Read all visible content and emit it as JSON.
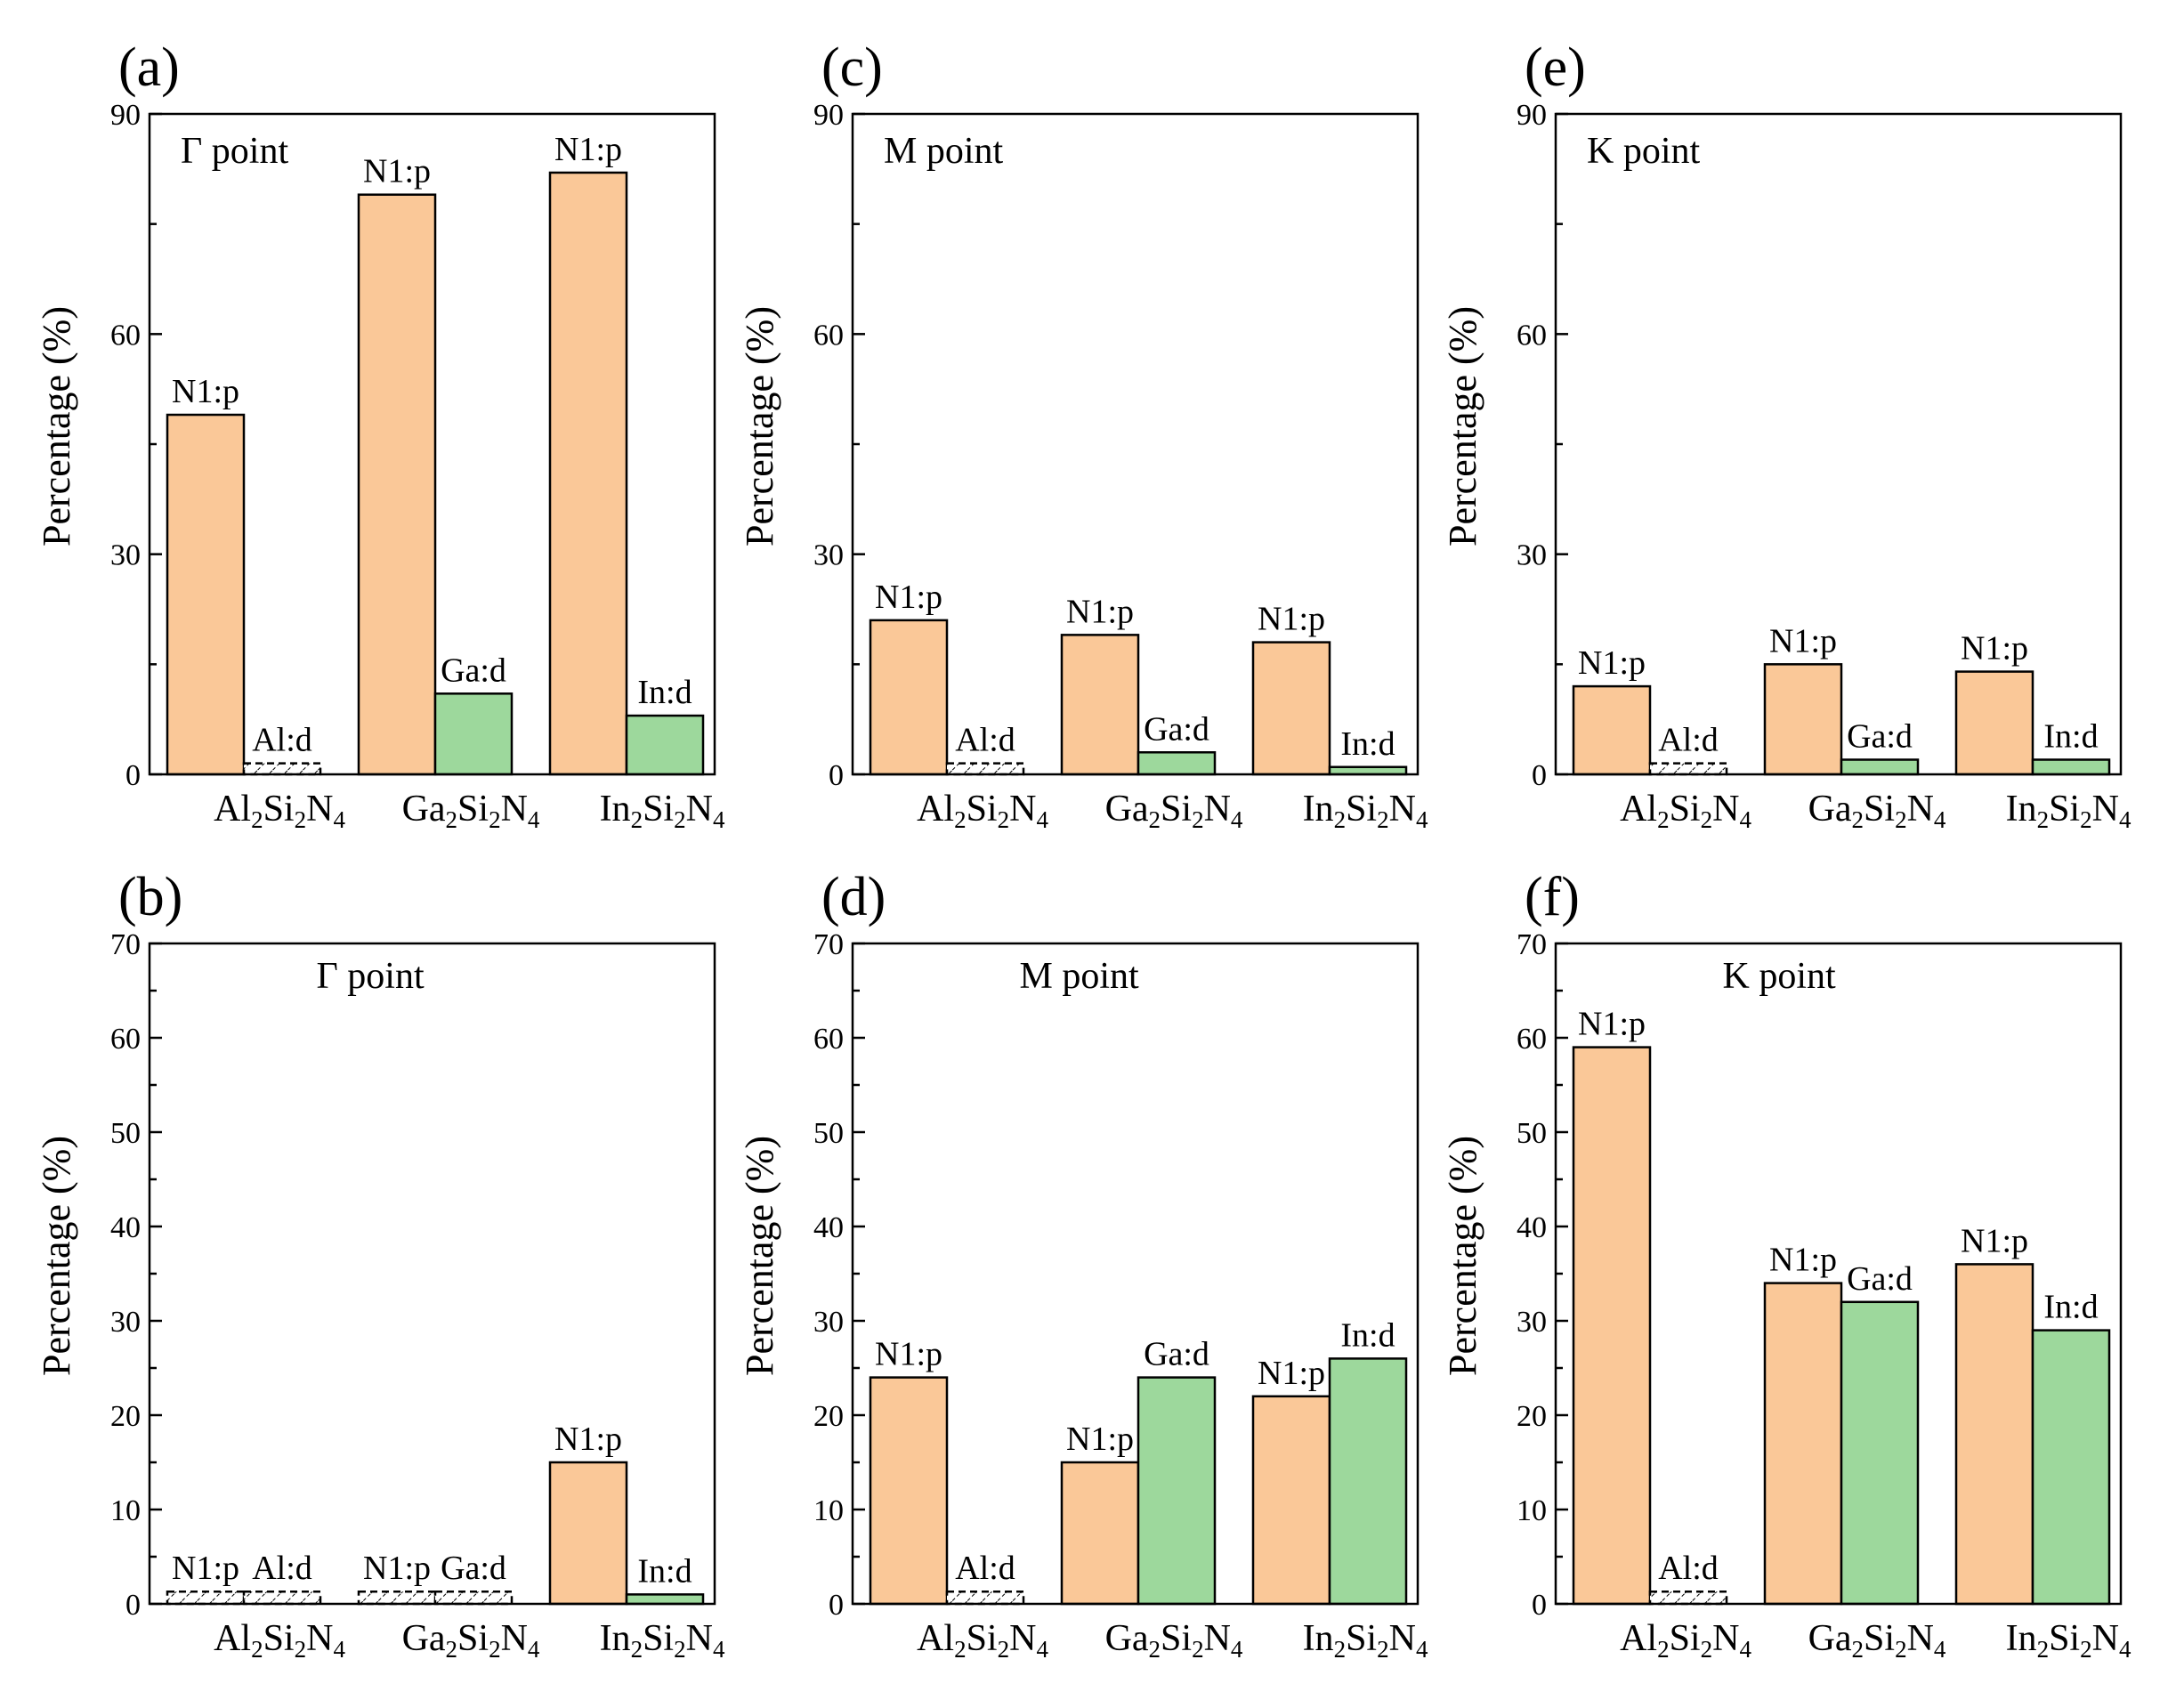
{
  "colors": {
    "n1p": "#fac898",
    "metal_d": "#9dd89c",
    "dashed_fill": "#ffffff",
    "axis": "#000000"
  },
  "subscript_digit": "2",
  "subscript_digit_n": "4",
  "chart_data": [
    {
      "panel": "(a)",
      "type": "bar",
      "title": "Γ point",
      "title_align": "left",
      "ylabel": "Percentage (%)",
      "ylim": [
        0,
        90
      ],
      "yticks": [
        0,
        30,
        60,
        90
      ],
      "categories": [
        {
          "metal": "Al",
          "n1p": 49,
          "d": 1.5,
          "d_label": "Al:d",
          "d_dashed": true
        },
        {
          "metal": "Ga",
          "n1p": 79,
          "d": 11,
          "d_label": "Ga:d",
          "d_dashed": false
        },
        {
          "metal": "In",
          "n1p": 82,
          "d": 8,
          "d_label": "In:d",
          "d_dashed": false
        }
      ],
      "n1p_label": "N1:p",
      "n1p_dashed": [
        false,
        false,
        false
      ]
    },
    {
      "panel": "(c)",
      "type": "bar",
      "title": "M point",
      "title_align": "left",
      "ylabel": "Percentage (%)",
      "ylim": [
        0,
        90
      ],
      "yticks": [
        0,
        30,
        60,
        90
      ],
      "categories": [
        {
          "metal": "Al",
          "n1p": 21,
          "d": 1.5,
          "d_label": "Al:d",
          "d_dashed": true
        },
        {
          "metal": "Ga",
          "n1p": 19,
          "d": 3,
          "d_label": "Ga:d",
          "d_dashed": false
        },
        {
          "metal": "In",
          "n1p": 18,
          "d": 1,
          "d_label": "In:d",
          "d_dashed": false
        }
      ],
      "n1p_label": "N1:p",
      "n1p_dashed": [
        false,
        false,
        false
      ]
    },
    {
      "panel": "(e)",
      "type": "bar",
      "title": "K point",
      "title_align": "left",
      "ylabel": "Percentage (%)",
      "ylim": [
        0,
        90
      ],
      "yticks": [
        0,
        30,
        60,
        90
      ],
      "categories": [
        {
          "metal": "Al",
          "n1p": 12,
          "d": 1.5,
          "d_label": "Al:d",
          "d_dashed": true
        },
        {
          "metal": "Ga",
          "n1p": 15,
          "d": 2,
          "d_label": "Ga:d",
          "d_dashed": false
        },
        {
          "metal": "In",
          "n1p": 14,
          "d": 2,
          "d_label": "In:d",
          "d_dashed": false
        }
      ],
      "n1p_label": "N1:p",
      "n1p_dashed": [
        false,
        false,
        false
      ]
    },
    {
      "panel": "(b)",
      "type": "bar",
      "title": "Γ point",
      "title_align": "center",
      "ylabel": "Percentage (%)",
      "ylim": [
        0,
        70
      ],
      "yticks": [
        0,
        10,
        20,
        30,
        40,
        50,
        60,
        70
      ],
      "categories": [
        {
          "metal": "Al",
          "n1p": 1.3,
          "d": 1.3,
          "d_label": "Al:d",
          "d_dashed": true
        },
        {
          "metal": "Ga",
          "n1p": 1.3,
          "d": 1.3,
          "d_label": "Ga:d",
          "d_dashed": true
        },
        {
          "metal": "In",
          "n1p": 15,
          "d": 1,
          "d_label": "In:d",
          "d_dashed": false
        }
      ],
      "n1p_label": "N1:p",
      "n1p_dashed": [
        true,
        true,
        false
      ]
    },
    {
      "panel": "(d)",
      "type": "bar",
      "title": "M point",
      "title_align": "center",
      "ylabel": "Percentage (%)",
      "ylim": [
        0,
        70
      ],
      "yticks": [
        0,
        10,
        20,
        30,
        40,
        50,
        60,
        70
      ],
      "categories": [
        {
          "metal": "Al",
          "n1p": 24,
          "d": 1.3,
          "d_label": "Al:d",
          "d_dashed": true
        },
        {
          "metal": "Ga",
          "n1p": 15,
          "d": 24,
          "d_label": "Ga:d",
          "d_dashed": false
        },
        {
          "metal": "In",
          "n1p": 22,
          "d": 26,
          "d_label": "In:d",
          "d_dashed": false
        }
      ],
      "n1p_label": "N1:p",
      "n1p_dashed": [
        false,
        false,
        false
      ]
    },
    {
      "panel": "(f)",
      "type": "bar",
      "title": "K point",
      "title_align": "center",
      "ylabel": "Percentage (%)",
      "ylim": [
        0,
        70
      ],
      "yticks": [
        0,
        10,
        20,
        30,
        40,
        50,
        60,
        70
      ],
      "categories": [
        {
          "metal": "Al",
          "n1p": 59,
          "d": 1.3,
          "d_label": "Al:d",
          "d_dashed": true
        },
        {
          "metal": "Ga",
          "n1p": 34,
          "d": 32,
          "d_label": "Ga:d",
          "d_dashed": false
        },
        {
          "metal": "In",
          "n1p": 36,
          "d": 29,
          "d_label": "In:d",
          "d_dashed": false
        }
      ],
      "n1p_label": "N1:p",
      "n1p_dashed": [
        false,
        false,
        false
      ]
    }
  ]
}
